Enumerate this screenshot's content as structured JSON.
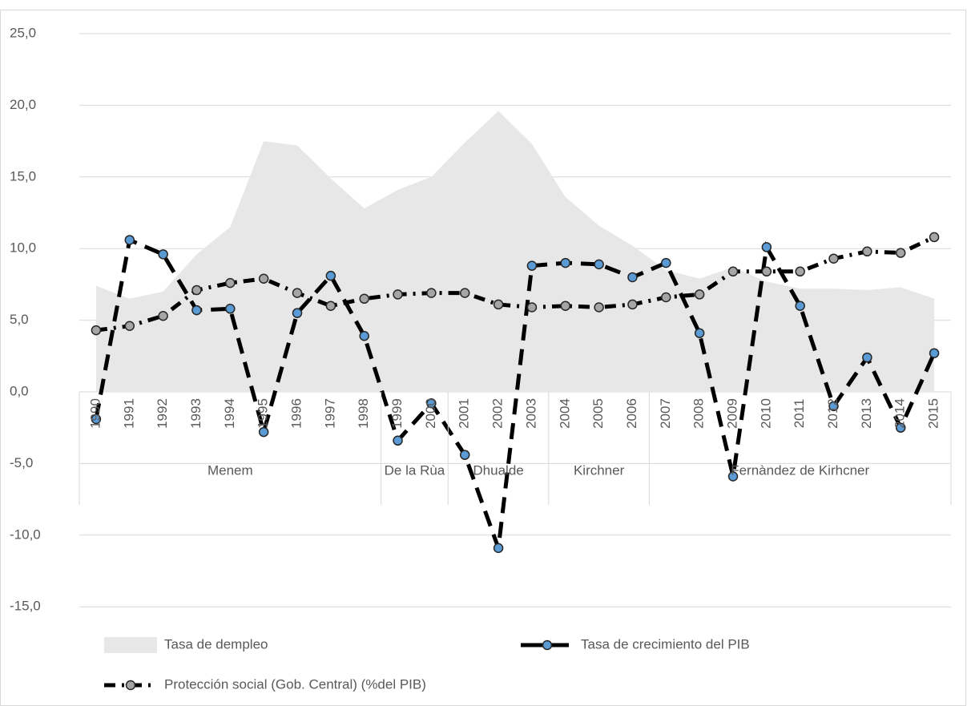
{
  "chart_data": {
    "type": "line",
    "groups": [
      {
        "label": "Menem",
        "categories": [
          "1990",
          "1991",
          "1992",
          "1993",
          "1994",
          "1995",
          "1996",
          "1997",
          "1998"
        ]
      },
      {
        "label": "De la Rùa",
        "categories": [
          "1999",
          "2000"
        ]
      },
      {
        "label": "Dhualde",
        "categories": [
          "2001",
          "2002",
          "2003"
        ]
      },
      {
        "label": "Kirchner",
        "categories": [
          "2004",
          "2005",
          "2006"
        ]
      },
      {
        "label": "Fernàndez de Kirhcner",
        "categories": [
          "2007",
          "2008",
          "2009",
          "2010",
          "2011",
          "2012",
          "2013",
          "2014",
          "2015"
        ]
      }
    ],
    "series": [
      {
        "name": "Tasa de dempleo",
        "kind": "area",
        "color": "#e7e7e7",
        "values": [
          7.4,
          6.5,
          7.0,
          9.6,
          11.5,
          17.5,
          17.2,
          14.9,
          12.8,
          14.1,
          15.0,
          17.4,
          19.6,
          17.3,
          13.6,
          11.6,
          10.2,
          8.5,
          7.9,
          8.7,
          7.7,
          7.2,
          7.2,
          7.1,
          7.3,
          6.5
        ]
      },
      {
        "name": "Tasa de crecimiento del PIB",
        "kind": "line",
        "color": "#5b9bd5",
        "values": [
          -1.9,
          10.6,
          9.6,
          5.7,
          5.8,
          -2.8,
          5.5,
          8.1,
          3.9,
          -3.4,
          -0.8,
          -4.4,
          -10.9,
          8.8,
          9.0,
          8.9,
          8.0,
          9.0,
          4.1,
          -5.9,
          10.1,
          6.0,
          -1.0,
          2.4,
          -2.5,
          2.7
        ]
      },
      {
        "name": "Protección social (Gob. Central) (%del PIB)",
        "kind": "line",
        "color": "#a5a5a5",
        "values": [
          4.3,
          4.6,
          5.3,
          7.1,
          7.6,
          7.9,
          6.9,
          6.0,
          6.5,
          6.8,
          6.9,
          6.9,
          6.1,
          5.9,
          6.0,
          5.9,
          6.1,
          6.6,
          6.8,
          8.4,
          8.4,
          8.4,
          9.3,
          9.8,
          9.7,
          10.8
        ]
      }
    ],
    "ylim": [
      -17.5,
      26.5
    ],
    "yticks": [
      {
        "value": 25,
        "label": "25,0"
      },
      {
        "value": 20,
        "label": "20,0"
      },
      {
        "value": 15,
        "label": "15,0"
      },
      {
        "value": 10,
        "label": "10,0"
      },
      {
        "value": 5,
        "label": "5,0"
      },
      {
        "value": 0,
        "label": "0,0"
      },
      {
        "value": -5,
        "label": "-5,0"
      },
      {
        "value": -10,
        "label": "-10,0"
      },
      {
        "value": -15,
        "label": "-15,0"
      }
    ],
    "grid": true
  }
}
